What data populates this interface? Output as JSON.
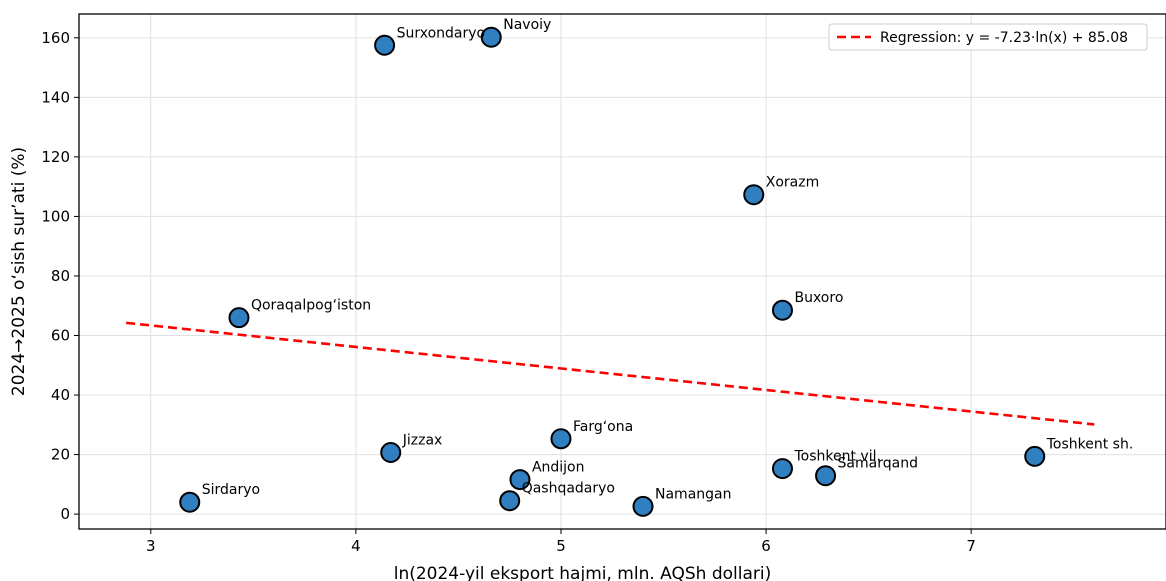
{
  "chart_data": {
    "type": "scatter",
    "xlabel": "ln(2024-yil eksport hajmi, mln. AQSh dollari)",
    "ylabel": "2024→2025 oʻsish surʼati (%)",
    "xlim": [
      2.65,
      7.95
    ],
    "ylim": [
      -5,
      168
    ],
    "xticks": [
      3,
      4,
      5,
      6,
      7
    ],
    "yticks": [
      0,
      20,
      40,
      60,
      80,
      100,
      120,
      140,
      160
    ],
    "grid": true,
    "legend_position": "top-right",
    "points": [
      {
        "label": "Surxondaryo",
        "x": 4.14,
        "y": 157.5
      },
      {
        "label": "Navoiy",
        "x": 4.66,
        "y": 160.2
      },
      {
        "label": "Xorazm",
        "x": 5.94,
        "y": 107.3
      },
      {
        "label": "Qoraqalpogʻiston",
        "x": 3.43,
        "y": 66.0
      },
      {
        "label": "Buxoro",
        "x": 6.08,
        "y": 68.5
      },
      {
        "label": "Jizzax",
        "x": 4.17,
        "y": 20.7
      },
      {
        "label": "Fargʻona",
        "x": 5.0,
        "y": 25.3
      },
      {
        "label": "Andijon",
        "x": 4.8,
        "y": 11.6
      },
      {
        "label": "Qashqadaryo",
        "x": 4.75,
        "y": 4.5
      },
      {
        "label": "Namangan",
        "x": 5.4,
        "y": 2.6
      },
      {
        "label": "Sirdaryo",
        "x": 3.19,
        "y": 4.0
      },
      {
        "label": "Toshkent vil.",
        "x": 6.08,
        "y": 15.3
      },
      {
        "label": "Samarqand",
        "x": 6.29,
        "y": 12.9
      },
      {
        "label": "Toshkent sh.",
        "x": 7.31,
        "y": 19.4
      }
    ],
    "regression": {
      "label": "Regression: y = -7.23·ln(x) + 85.08",
      "slope": -7.23,
      "intercept": 85.08,
      "x_range": [
        2.88,
        7.6
      ]
    },
    "colors": {
      "point_fill": "#2f7fc1",
      "point_edge": "#000000",
      "regression": "#ff0000",
      "grid": "#e0e0e0"
    }
  }
}
